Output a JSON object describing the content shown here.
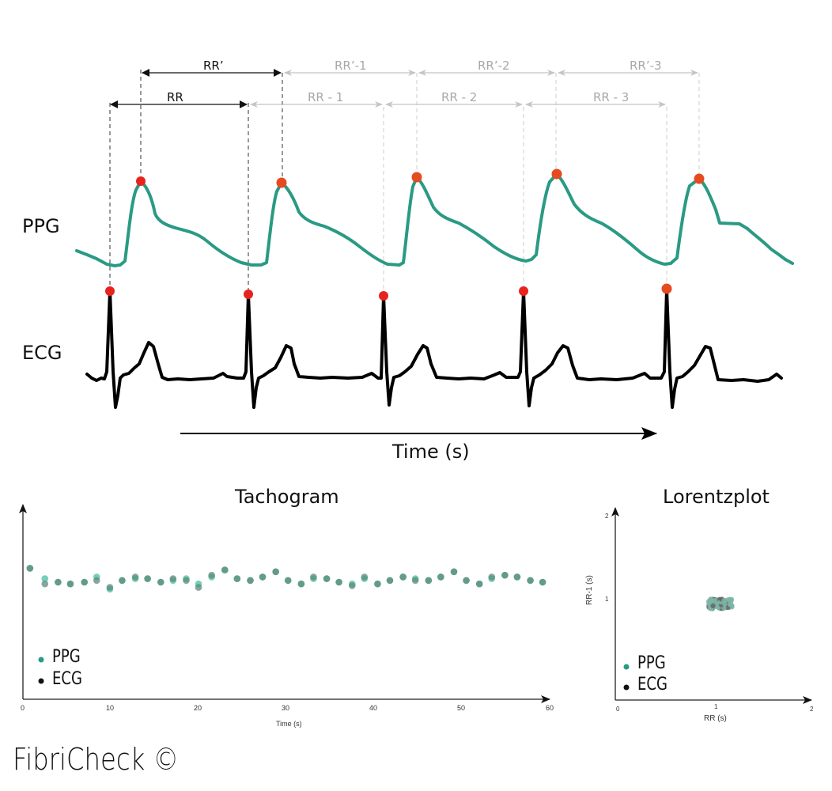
{
  "diagram": {
    "signals": {
      "ppg_label": "PPG",
      "ecg_label": "ECG",
      "ppg_color": "#2a9a84",
      "ecg_color": "#000000",
      "peak_marker_color": "#e8231f"
    },
    "intervals": {
      "ecg_row": [
        "RR",
        "RR - 1",
        "RR - 2",
        "RR - 3"
      ],
      "ppg_row": [
        "RR’",
        "RR’-1",
        "RR’-2",
        "RR’-3"
      ],
      "active_color": "#111111",
      "faded_color": "#b8b8b8"
    },
    "time_axis_label": "Time (s)",
    "brand": "FibriCheck ©"
  },
  "chart_data": [
    {
      "type": "scatter",
      "title": "Tachogram",
      "xlabel": "Time (s)",
      "ylabel": "",
      "xlim": [
        0,
        60
      ],
      "xticks": [
        0,
        10,
        20,
        30,
        40,
        50,
        60
      ],
      "grid": false,
      "legend": {
        "position": "lower-left",
        "entries": [
          "PPG",
          "ECG"
        ]
      },
      "series": [
        {
          "name": "PPG",
          "color": "#5ec7ad",
          "x": [
            0.8,
            2.5,
            4,
            5.4,
            7,
            8.4,
            9.9,
            11.3,
            12.8,
            14.2,
            15.7,
            17.1,
            18.6,
            20,
            21.5,
            23,
            24.4,
            25.9,
            27.3,
            28.8,
            30.2,
            31.7,
            33.1,
            34.6,
            36,
            37.5,
            38.9,
            40.4,
            41.8,
            43.3,
            44.7,
            46.2,
            47.6,
            49.1,
            50.5,
            52,
            53.4,
            54.9,
            56.3,
            57.8,
            59.2
          ],
          "y": [
            1.08,
            1.02,
            1.0,
            0.99,
            1.0,
            1.03,
            0.96,
            1.01,
            1.02,
            1.02,
            1.0,
            1.01,
            1.02,
            0.99,
            1.03,
            1.07,
            1.02,
            1.01,
            1.03,
            1.06,
            1.01,
            0.99,
            1.02,
            1.02,
            1.0,
            0.99,
            1.02,
            0.99,
            1.01,
            1.03,
            1.02,
            1.01,
            1.03,
            1.06,
            1.01,
            0.99,
            1.02,
            1.04,
            1.03,
            1.01,
            1.0
          ]
        },
        {
          "name": "ECG",
          "color": "#222222",
          "x": [
            0.8,
            2.5,
            4,
            5.4,
            7,
            8.4,
            9.9,
            11.3,
            12.8,
            14.2,
            15.7,
            17.1,
            18.6,
            20,
            21.5,
            23,
            24.4,
            25.9,
            27.3,
            28.8,
            30.2,
            31.7,
            33.1,
            34.6,
            36,
            37.5,
            38.9,
            40.4,
            41.8,
            43.3,
            44.7,
            46.2,
            47.6,
            49.1,
            50.5,
            52,
            53.4,
            54.9,
            56.3,
            57.8,
            59.2
          ],
          "y": [
            1.08,
            0.99,
            1.0,
            0.99,
            1.0,
            1.01,
            0.97,
            1.01,
            1.03,
            1.02,
            1.0,
            1.02,
            1.01,
            0.97,
            1.04,
            1.07,
            1.02,
            1.01,
            1.03,
            1.06,
            1.01,
            0.99,
            1.03,
            1.02,
            1.0,
            0.98,
            1.03,
            0.99,
            1.01,
            1.03,
            1.01,
            1.01,
            1.03,
            1.06,
            1.01,
            0.99,
            1.03,
            1.04,
            1.03,
            1.01,
            1.0
          ]
        }
      ]
    },
    {
      "type": "scatter",
      "title": "Lorentzplot",
      "xlabel": "RR (s)",
      "ylabel": "RR-1 (s)",
      "xlim": [
        0,
        2
      ],
      "ylim": [
        0,
        2
      ],
      "xticks": [
        0,
        1,
        2
      ],
      "yticks": [
        1,
        2
      ],
      "grid": false,
      "legend": {
        "position": "lower-left",
        "entries": [
          "PPG",
          "ECG"
        ]
      },
      "cluster": {
        "x_range": [
          0.95,
          1.2
        ],
        "y_range": [
          0.95,
          1.05
        ],
        "center": [
          1.07,
          1.0
        ]
      },
      "series": [
        {
          "name": "PPG",
          "color": "#5ec7ad"
        },
        {
          "name": "ECG",
          "color": "#222222"
        }
      ]
    }
  ]
}
